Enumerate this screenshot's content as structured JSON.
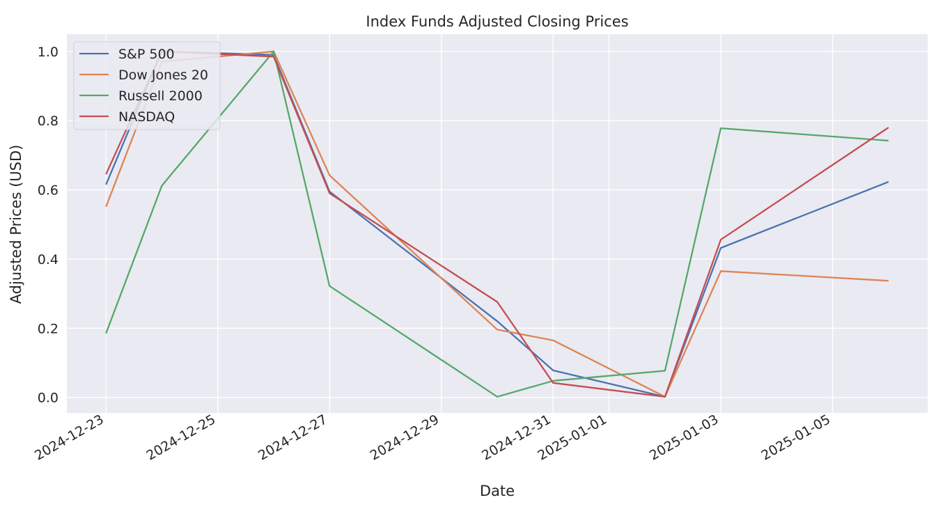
{
  "chart_data": {
    "type": "line",
    "title": "Index Funds Adjusted Closing Prices",
    "xlabel": "Date",
    "ylabel": "Adjusted Prices (USD)",
    "x": [
      "2024-12-23",
      "2024-12-24",
      "2024-12-26",
      "2024-12-27",
      "2024-12-30",
      "2024-12-31",
      "2025-01-02",
      "2025-01-03",
      "2025-01-06"
    ],
    "x_ticks": [
      "2024-12-23",
      "2024-12-25",
      "2024-12-27",
      "2024-12-29",
      "2024-12-31",
      "2025-01-01",
      "2025-01-03",
      "2025-01-05"
    ],
    "y_ticks": [
      "0.0",
      "0.2",
      "0.4",
      "0.6",
      "0.8",
      "1.0"
    ],
    "ylim": [
      -0.045,
      1.05
    ],
    "grid": true,
    "legend_position": "top-left",
    "series": [
      {
        "name": "S&P 500",
        "color": "#4c72b0",
        "values": [
          0.615,
          1.0,
          0.99,
          0.595,
          0.22,
          0.078,
          0.002,
          0.432,
          0.623
        ]
      },
      {
        "name": "Dow Jones 20",
        "color": "#dd8452",
        "values": [
          0.551,
          0.97,
          1.0,
          0.642,
          0.196,
          0.165,
          0.002,
          0.365,
          0.337
        ]
      },
      {
        "name": "Russell 2000",
        "color": "#55a868",
        "values": [
          0.185,
          0.612,
          1.0,
          0.322,
          0.002,
          0.048,
          0.077,
          0.778,
          0.742
        ]
      },
      {
        "name": "NASDAQ",
        "color": "#c44e52",
        "values": [
          0.645,
          1.0,
          0.985,
          0.59,
          0.276,
          0.042,
          0.002,
          0.456,
          0.78
        ]
      }
    ]
  }
}
